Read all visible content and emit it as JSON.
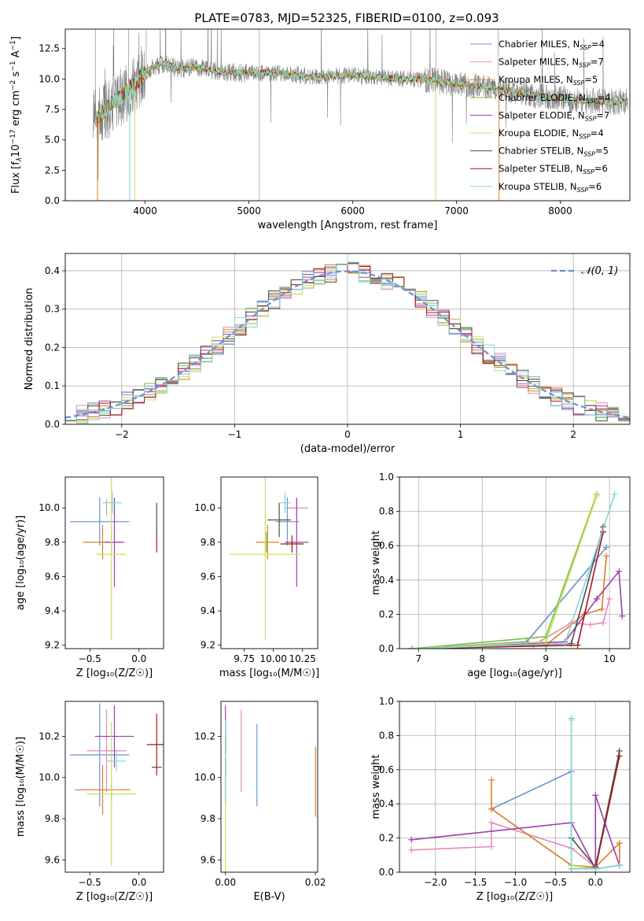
{
  "figure_title": "PLATE=0783, MJD=52325, FIBERID=0100, z=0.093",
  "colors": {
    "Chabrier MILES": "#6b8fd6",
    "Salpeter MILES": "#e58ab8",
    "Kroupa MILES": "#e07b22",
    "Chabrier ELODIE": "#7fbf3f",
    "Salpeter ELODIE": "#9b3fb0",
    "Kroupa ELODIE": "#c8e060",
    "Chabrier STELIB": "#4d4d4d",
    "Salpeter STELIB": "#a01818",
    "Kroupa STELIB": "#7fd8d8",
    "gauss": "#6b8fd6",
    "spectrum": "#808080"
  },
  "chart_data": [
    {
      "id": "spectrum",
      "type": "line",
      "xlabel": "wavelength [Angstrom, rest frame]",
      "ylabel_parts": [
        "Flux [f",
        "λ",
        "10",
        "−17",
        " erg cm",
        "−2",
        " s",
        "−1",
        " A",
        "−1",
        "]"
      ],
      "xlim": [
        3230,
        8670
      ],
      "ylim": [
        0,
        14.1
      ],
      "xticks": [
        4000,
        5000,
        6000,
        7000,
        8000
      ],
      "yticks": [
        0.0,
        2.5,
        5.0,
        7.5,
        10.0,
        12.5
      ],
      "legend_position": "top-right",
      "legend": [
        {
          "name": "Chabrier MILES",
          "nssp": "4"
        },
        {
          "name": "Salpeter MILES",
          "nssp": "7"
        },
        {
          "name": "Kroupa MILES",
          "nssp": "5"
        },
        {
          "name": "Chabrier ELODIE",
          "nssp": "4"
        },
        {
          "name": "Salpeter ELODIE",
          "nssp": "7"
        },
        {
          "name": "Kroupa ELODIE",
          "nssp": "4"
        },
        {
          "name": "Chabrier STELIB",
          "nssp": "5"
        },
        {
          "name": "Salpeter STELIB",
          "nssp": "6"
        },
        {
          "name": "Kroupa STELIB",
          "nssp": "6"
        }
      ],
      "continuum": {
        "x": [
          3500,
          3600,
          3700,
          3800,
          3900,
          4000,
          4100,
          4200,
          4300,
          4500,
          4700,
          5000,
          5300,
          5600,
          6000,
          6500,
          6800,
          7000,
          7400,
          7800,
          8200,
          8650
        ],
        "y": [
          6.5,
          7.2,
          8.2,
          8.8,
          9.5,
          10.6,
          11.0,
          11.4,
          10.8,
          11.0,
          10.6,
          10.5,
          10.5,
          10.2,
          10.3,
          10.0,
          9.9,
          9.6,
          9.2,
          8.6,
          8.2,
          8.1
        ]
      }
    },
    {
      "id": "residuals",
      "type": "histogram",
      "xlabel": "(data-model)/error",
      "ylabel": "Normed distribution",
      "xlim": [
        -2.5,
        2.5
      ],
      "ylim": [
        0,
        0.445
      ],
      "xticks": [
        -2,
        -1,
        0,
        1,
        2
      ],
      "yticks": [
        0.0,
        0.1,
        0.2,
        0.3,
        0.4
      ],
      "grid": true,
      "legend_label": "𝒩(0, 1)",
      "legend_position": "top-right",
      "bin_width": 0.1
    },
    {
      "id": "age_vs_Z",
      "type": "errorbar",
      "xlabel": "Z [log₁₀(Z/Z☉)]",
      "ylabel": "age  [log₁₀(age/yr)]",
      "xlim": [
        -0.75,
        0.25
      ],
      "ylim": [
        9.18,
        10.18
      ],
      "xticks": [
        -0.5,
        0.0
      ],
      "xticklabels": [
        "−0.5",
        "0.0"
      ],
      "yticks": [
        9.2,
        9.4,
        9.6,
        9.8,
        10.0
      ],
      "points": [
        {
          "model": "Chabrier MILES",
          "x": -0.4,
          "xerr": 0.3,
          "y": 9.92,
          "yerr": 0.14
        },
        {
          "model": "Salpeter MILES",
          "x": -0.33,
          "xerr": 0.0,
          "y": 10.0,
          "yerr": 0.05
        },
        {
          "model": "Kroupa MILES",
          "x": -0.37,
          "xerr": 0.2,
          "y": 9.8,
          "yerr": 0.1
        },
        {
          "model": "Chabrier ELODIE",
          "x": -0.28,
          "xerr": 0.0,
          "y": 9.8,
          "yerr": 0.06
        },
        {
          "model": "Salpeter ELODIE",
          "x": -0.25,
          "xerr": 0.1,
          "y": 9.8,
          "yerr": 0.26
        },
        {
          "model": "Kroupa ELODIE",
          "x": -0.28,
          "xerr": 0.15,
          "y": 9.73,
          "yerr": 0.5
        },
        {
          "model": "Chabrier STELIB",
          "x": 0.18,
          "xerr": 0.0,
          "y": 9.93,
          "yerr": 0.1
        },
        {
          "model": "Salpeter STELIB",
          "x": 0.18,
          "xerr": 0.0,
          "y": 9.79,
          "yerr": 0.05
        },
        {
          "model": "Kroupa STELIB",
          "x": -0.27,
          "xerr": 0.1,
          "y": 10.03,
          "yerr": 0.06
        }
      ]
    },
    {
      "id": "age_vs_mass",
      "type": "errorbar",
      "xlabel": "mass [log₁₀(M/M☉)]",
      "ylabel": "",
      "xlim": [
        9.55,
        10.38
      ],
      "ylim": [
        9.18,
        10.18
      ],
      "xticks": [
        9.75,
        10.0,
        10.25
      ],
      "xticklabels": [
        "9.75",
        "10.00",
        "10.25"
      ],
      "yticks": [
        9.2,
        9.4,
        9.6,
        9.8,
        10.0
      ],
      "points": [
        {
          "model": "Chabrier MILES",
          "x": 10.12,
          "xerr": 0.1,
          "y": 9.92,
          "yerr": 0.14
        },
        {
          "model": "Salpeter MILES",
          "x": 10.2,
          "xerr": 0.1,
          "y": 10.0,
          "yerr": 0.05
        },
        {
          "model": "Kroupa MILES",
          "x": 9.95,
          "xerr": 0.1,
          "y": 9.8,
          "yerr": 0.1
        },
        {
          "model": "Chabrier ELODIE",
          "x": 9.94,
          "xerr": 0.03,
          "y": 9.8,
          "yerr": 0.06
        },
        {
          "model": "Salpeter ELODIE",
          "x": 10.2,
          "xerr": 0.1,
          "y": 9.8,
          "yerr": 0.26
        },
        {
          "model": "Kroupa ELODIE",
          "x": 9.93,
          "xerr": 0.3,
          "y": 9.73,
          "yerr": 0.5
        },
        {
          "model": "Chabrier STELIB",
          "x": 10.05,
          "xerr": 0.1,
          "y": 9.93,
          "yerr": 0.1
        },
        {
          "model": "Salpeter STELIB",
          "x": 10.16,
          "xerr": 0.1,
          "y": 9.79,
          "yerr": 0.05
        },
        {
          "model": "Kroupa STELIB",
          "x": 10.1,
          "xerr": 0.05,
          "y": 10.03,
          "yerr": 0.06
        }
      ]
    },
    {
      "id": "massweight_vs_age",
      "type": "line",
      "xlabel": "age  [log₁₀(age/yr)]",
      "ylabel": "mass weight",
      "xlim": [
        6.7,
        10.32
      ],
      "ylim": [
        0,
        1.0
      ],
      "xticks": [
        7,
        8,
        9,
        10
      ],
      "yticks": [
        0.0,
        0.2,
        0.4,
        0.6,
        0.8,
        1.0
      ],
      "grid": true,
      "series": [
        {
          "model": "Chabrier MILES",
          "x": [
            6.9,
            8.7,
            9.95
          ],
          "y": [
            0.0,
            0.04,
            0.59
          ]
        },
        {
          "model": "Salpeter MILES",
          "x": [
            6.9,
            8.8,
            9.4,
            9.7,
            9.9,
            10.0
          ],
          "y": [
            0.0,
            0.02,
            0.15,
            0.14,
            0.15,
            0.29
          ]
        },
        {
          "model": "Kroupa MILES",
          "x": [
            6.9,
            9.0,
            9.6,
            9.88,
            9.95
          ],
          "y": [
            0.0,
            0.02,
            0.2,
            0.23,
            0.54
          ]
        },
        {
          "model": "Chabrier ELODIE",
          "x": [
            6.9,
            9.0,
            9.8
          ],
          "y": [
            0.0,
            0.07,
            0.9
          ]
        },
        {
          "model": "Salpeter ELODIE",
          "x": [
            6.9,
            9.3,
            9.8,
            10.15,
            10.2
          ],
          "y": [
            0.0,
            0.04,
            0.29,
            0.45,
            0.19
          ]
        },
        {
          "model": "Kroupa ELODIE",
          "x": [
            6.9,
            9.0,
            9.8
          ],
          "y": [
            0.0,
            0.04,
            0.89
          ]
        },
        {
          "model": "Chabrier STELIB",
          "x": [
            6.9,
            9.4,
            9.9
          ],
          "y": [
            0.0,
            0.03,
            0.71
          ]
        },
        {
          "model": "Salpeter STELIB",
          "x": [
            6.9,
            9.5,
            9.9
          ],
          "y": [
            0.0,
            0.02,
            0.68
          ]
        },
        {
          "model": "Kroupa STELIB",
          "x": [
            6.9,
            9.3,
            10.08
          ],
          "y": [
            0.0,
            0.03,
            0.9
          ]
        }
      ]
    },
    {
      "id": "mass_vs_Z",
      "type": "errorbar",
      "xlabel": "Z [log₁₀(Z/Z☉)]",
      "ylabel": "mass [log₁₀(M/M☉)]",
      "xlim": [
        -0.75,
        0.25
      ],
      "ylim": [
        9.54,
        10.37
      ],
      "xticks": [
        -0.5,
        0.0
      ],
      "xticklabels": [
        "−0.5",
        "0.0"
      ],
      "yticks": [
        9.6,
        9.8,
        10.0,
        10.2
      ],
      "points": [
        {
          "model": "Chabrier MILES",
          "x": -0.4,
          "xerr": 0.3,
          "y": 10.11,
          "yerr": 0.25
        },
        {
          "model": "Salpeter MILES",
          "x": -0.33,
          "xerr": 0.2,
          "y": 10.13,
          "yerr": 0.2
        },
        {
          "model": "Kroupa MILES",
          "x": -0.37,
          "xerr": 0.28,
          "y": 9.94,
          "yerr": 0.12
        },
        {
          "model": "Chabrier ELODIE",
          "x": -0.28,
          "xerr": 0.0,
          "y": 9.93,
          "yerr": 0.05
        },
        {
          "model": "Salpeter ELODIE",
          "x": -0.25,
          "xerr": 0.2,
          "y": 10.2,
          "yerr": 0.15
        },
        {
          "model": "Kroupa ELODIE",
          "x": -0.28,
          "xerr": 0.25,
          "y": 9.92,
          "yerr": 0.35
        },
        {
          "model": "Chabrier STELIB",
          "x": 0.18,
          "xerr": 0.05,
          "y": 10.05,
          "yerr": 0.0
        },
        {
          "model": "Salpeter STELIB",
          "x": 0.18,
          "xerr": 0.1,
          "y": 10.16,
          "yerr": 0.15
        },
        {
          "model": "Kroupa STELIB",
          "x": -0.23,
          "xerr": 0.1,
          "y": 10.08,
          "yerr": 0.05
        }
      ]
    },
    {
      "id": "mass_vs_ebv",
      "type": "errorbar",
      "xlabel": "E(B-V)",
      "ylabel": "",
      "xlim": [
        -0.001,
        0.0205
      ],
      "ylim": [
        9.54,
        10.37
      ],
      "xticks": [
        0.0,
        0.02
      ],
      "xticklabels": [
        "0.00",
        "0.02"
      ],
      "yticks": [
        9.6,
        9.8,
        10.0,
        10.2
      ],
      "points": [
        {
          "model": "Chabrier MILES",
          "x": 0.007,
          "xerr": 0,
          "y": 10.06,
          "yerr": 0.2
        },
        {
          "model": "Salpeter MILES",
          "x": 0.0035,
          "xerr": 0,
          "y": 10.13,
          "yerr": 0.2
        },
        {
          "model": "Kroupa MILES",
          "x": 0.02,
          "xerr": 0,
          "y": 9.98,
          "yerr": 0.17
        },
        {
          "model": "Chabrier ELODIE",
          "x": 0.0,
          "xerr": 0,
          "y": 9.93,
          "yerr": 0.05
        },
        {
          "model": "Salpeter ELODIE",
          "x": 0.0,
          "xerr": 0,
          "y": 10.25,
          "yerr": 0.1
        },
        {
          "model": "Kroupa ELODIE",
          "x": 0.0,
          "xerr": 0,
          "y": 9.78,
          "yerr": 0.3
        },
        {
          "model": "Chabrier STELIB",
          "x": 0.0,
          "xerr": 0,
          "y": 10.05,
          "yerr": 0.05
        },
        {
          "model": "Salpeter STELIB",
          "x": 0.0,
          "xerr": 0,
          "y": 10.16,
          "yerr": 0.05
        },
        {
          "model": "Kroupa STELIB",
          "x": 0.0,
          "xerr": 0,
          "y": 10.08,
          "yerr": 0.2
        }
      ]
    },
    {
      "id": "massweight_vs_Z",
      "type": "line",
      "xlabel": "Z [log₁₀(Z/Z☉)]",
      "ylabel": "mass weight",
      "xlim": [
        -2.45,
        0.43
      ],
      "ylim": [
        0,
        1.0
      ],
      "xticks": [
        -2.0,
        -1.5,
        -1.0,
        -0.5,
        0.0
      ],
      "xticklabels": [
        "−2.0",
        "−1.5",
        "−1.0",
        "−0.5",
        "0.0"
      ],
      "yticks": [
        0.0,
        0.2,
        0.4,
        0.6,
        0.8,
        1.0
      ],
      "grid": true,
      "series": [
        {
          "model": "Chabrier MILES",
          "x": [
            -1.3,
            -0.3,
            -0.3,
            0.0,
            0.3
          ],
          "y": [
            0.37,
            0.59,
            0.04,
            0.02,
            0.04
          ]
        },
        {
          "model": "Salpeter MILES",
          "x": [
            -2.3,
            -1.3,
            -1.3,
            -0.3,
            0.0
          ],
          "y": [
            0.13,
            0.15,
            0.29,
            0.14,
            0.03
          ]
        },
        {
          "model": "Kroupa MILES",
          "x": [
            -1.3,
            -1.3,
            -0.3,
            0.0,
            0.3,
            0.3
          ],
          "y": [
            0.54,
            0.37,
            0.04,
            0.03,
            0.17,
            0.04
          ]
        },
        {
          "model": "Chabrier ELODIE",
          "x": [
            -0.3,
            -0.3,
            0.0
          ],
          "y": [
            0.9,
            0.04,
            0.02
          ]
        },
        {
          "model": "Salpeter ELODIE",
          "x": [
            -2.3,
            -0.3,
            0.0,
            0.0,
            0.3
          ],
          "y": [
            0.19,
            0.29,
            0.02,
            0.45,
            0.04
          ]
        },
        {
          "model": "Kroupa ELODIE",
          "x": [
            -0.3,
            -0.3,
            0.0
          ],
          "y": [
            0.89,
            0.04,
            0.02
          ]
        },
        {
          "model": "Chabrier STELIB",
          "x": [
            -0.3,
            0.0,
            0.3
          ],
          "y": [
            0.2,
            0.03,
            0.71
          ]
        },
        {
          "model": "Salpeter STELIB",
          "x": [
            -0.3,
            0.0,
            0.3
          ],
          "y": [
            0.02,
            0.02,
            0.68
          ]
        },
        {
          "model": "Kroupa STELIB",
          "x": [
            -0.3,
            -0.3,
            0.0,
            0.3
          ],
          "y": [
            0.9,
            0.02,
            0.02,
            0.04
          ]
        }
      ]
    }
  ]
}
